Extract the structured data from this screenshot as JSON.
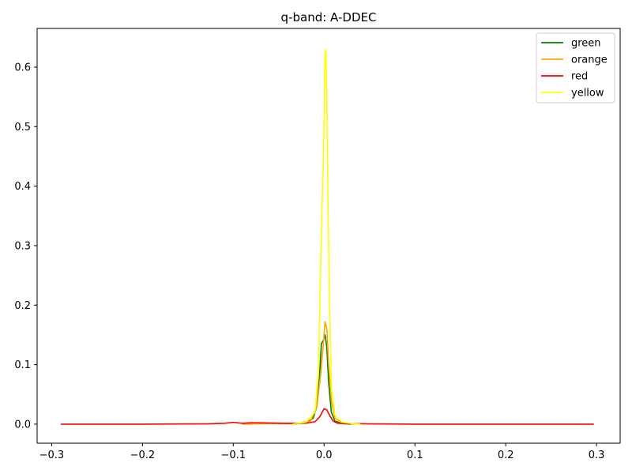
{
  "chart_data": {
    "type": "line",
    "title": "q-band: A-DDEC",
    "xlabel": "",
    "ylabel": "",
    "xlim": [
      -0.316,
      0.326
    ],
    "ylim": [
      -0.032,
      0.665
    ],
    "xticks": [
      -0.3,
      -0.2,
      -0.1,
      0.0,
      0.1,
      0.2,
      0.3
    ],
    "xtick_labels": [
      "−0.3",
      "−0.2",
      "−0.1",
      "0.0",
      "0.1",
      "0.2",
      "0.3"
    ],
    "yticks": [
      0.0,
      0.1,
      0.2,
      0.3,
      0.4,
      0.5,
      0.6
    ],
    "ytick_labels": [
      "0.0",
      "0.1",
      "0.2",
      "0.3",
      "0.4",
      "0.5",
      "0.6"
    ],
    "grid": false,
    "legend_position": "top-right",
    "series": [
      {
        "name": "green",
        "color": "#008000",
        "x": [
          -0.035,
          -0.02,
          -0.012,
          -0.008,
          -0.005,
          -0.003,
          -0.001,
          0.0,
          0.001,
          0.003,
          0.005,
          0.008,
          0.012,
          0.02,
          0.03
        ],
        "y": [
          0.0,
          0.002,
          0.01,
          0.03,
          0.08,
          0.135,
          0.14,
          0.145,
          0.15,
          0.13,
          0.07,
          0.02,
          0.005,
          0.001,
          0.0
        ]
      },
      {
        "name": "orange",
        "color": "#ffa500",
        "x": [
          -0.09,
          -0.06,
          -0.03,
          -0.015,
          -0.008,
          -0.004,
          -0.001,
          0.001,
          0.003,
          0.005,
          0.008,
          0.012,
          0.02,
          0.035
        ],
        "y": [
          0.0,
          0.001,
          0.001,
          0.005,
          0.03,
          0.08,
          0.13,
          0.172,
          0.16,
          0.1,
          0.04,
          0.01,
          0.002,
          0.0
        ]
      },
      {
        "name": "red",
        "color": "#ff0000",
        "x": [
          -0.29,
          -0.2,
          -0.13,
          -0.11,
          -0.1,
          -0.09,
          -0.08,
          -0.06,
          -0.04,
          -0.02,
          -0.01,
          -0.005,
          0.0,
          0.003,
          0.006,
          0.01,
          0.015,
          0.025,
          0.05,
          0.1,
          0.2,
          0.297
        ],
        "y": [
          0.0,
          0.0,
          0.0005,
          0.0015,
          0.003,
          0.0015,
          0.0025,
          0.002,
          0.0015,
          0.0015,
          0.004,
          0.012,
          0.026,
          0.024,
          0.015,
          0.005,
          0.0015,
          0.001,
          0.0005,
          0.0,
          0.0,
          0.0
        ]
      },
      {
        "name": "yellow",
        "color": "#ffff00",
        "x": [
          -0.035,
          -0.02,
          -0.01,
          -0.006,
          -0.004,
          -0.002,
          0.0,
          0.001,
          0.002,
          0.003,
          0.004,
          0.006,
          0.008,
          0.012,
          0.02,
          0.03,
          0.04
        ],
        "y": [
          0.0,
          0.003,
          0.02,
          0.1,
          0.25,
          0.38,
          0.5,
          0.62,
          0.63,
          0.55,
          0.4,
          0.2,
          0.06,
          0.015,
          0.003,
          0.001,
          0.0
        ]
      }
    ]
  }
}
